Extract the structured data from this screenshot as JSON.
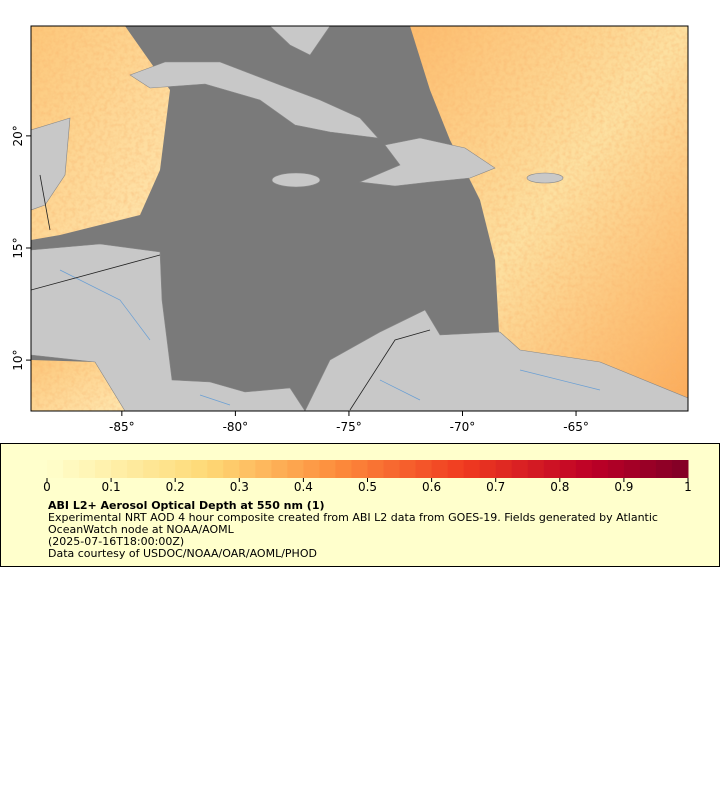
{
  "map": {
    "xlim": [
      -89,
      -60.07
    ],
    "ylim": [
      7.73,
      24.9
    ],
    "xticks": [
      {
        "value": -85,
        "label": "-85°"
      },
      {
        "value": -80,
        "label": "-80°"
      },
      {
        "value": -75,
        "label": "-75°"
      },
      {
        "value": -70,
        "label": "-70°"
      },
      {
        "value": -65,
        "label": "-65°"
      }
    ],
    "yticks": [
      {
        "value": 10,
        "label": "10°"
      },
      {
        "value": 15,
        "label": "15°"
      },
      {
        "value": 20,
        "label": "20°"
      }
    ]
  },
  "legend": {
    "colorbar": {
      "lim": [
        0,
        1
      ],
      "ticks": [
        0,
        0.1,
        0.2,
        0.3,
        0.4,
        0.5,
        0.6,
        0.7,
        0.8,
        0.9,
        1
      ]
    },
    "title": "ABI L2+ Aerosol Optical Depth at 550 nm (1)",
    "description": "Experimental NRT AOD 4 hour composite created from ABI L2 data from GOES-19. Fields generated by Atlantic OceanWatch node at NOAA/AOML",
    "timestamp": "(2025-07-16T18:00:00Z)",
    "credit": "Data courtesy of USDOC/NOAA/OAR/AOML/PHOD"
  }
}
